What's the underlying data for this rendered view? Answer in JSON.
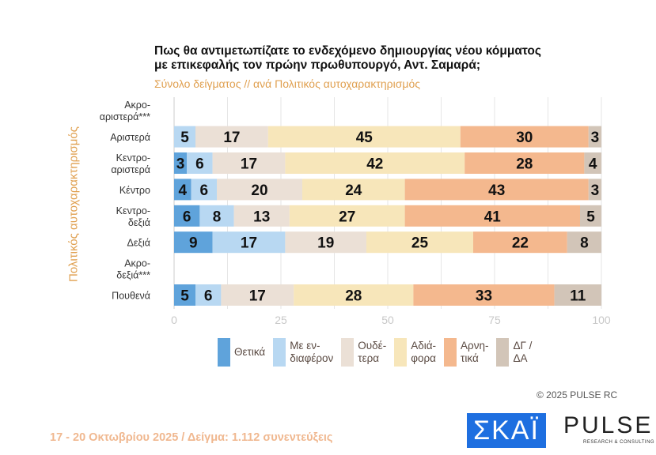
{
  "chart_data": {
    "type": "bar",
    "orientation": "horizontal",
    "stacked": true,
    "title": "Πως θα αντιμετωπίζατε το ενδεχόμενο δημιουργίας νέου κόμματος με επικεφαλής τον πρώην πρωθυπουργό, Αντ. Σαμαρά;",
    "title_lines": [
      "Πως θα αντιμετωπίζατε το ενδεχόμενο δημιουργίας νέου κόμματος",
      "με επικεφαλής τον πρώην πρωθυπουργό, Αντ. Σαμαρά;"
    ],
    "subtitle": "Σύνολο δείγματος // ανά Πολιτικός αυτοχαρακτηρισμός",
    "ylabel": "Πολιτικός αυτοχαρακτηρισμός",
    "xlim": [
      0,
      100
    ],
    "xticks": [
      "0",
      "25",
      "50",
      "75",
      "100"
    ],
    "grid": true,
    "legend_position": "bottom",
    "categories": [
      {
        "label": [
          "Ακρο-",
          "αριστερά***"
        ]
      },
      {
        "label": [
          "Αριστερά"
        ]
      },
      {
        "label": [
          "Κεντρο-",
          "αριστερά"
        ]
      },
      {
        "label": [
          "Κέντρο"
        ]
      },
      {
        "label": [
          "Κεντρο-",
          "δεξιά"
        ]
      },
      {
        "label": [
          "Δεξιά"
        ]
      },
      {
        "label": [
          "Ακρο-",
          "δεξιά***"
        ]
      },
      {
        "label": [
          "Πουθενά"
        ]
      }
    ],
    "series": [
      {
        "name": "Θετικά",
        "legend": [
          "Θετικά"
        ],
        "color": "#5fa3db",
        "values": [
          null,
          0,
          3,
          4,
          6,
          9,
          null,
          5
        ]
      },
      {
        "name": "Με ενδιαφέρον",
        "legend": [
          "Με εν-",
          "διαφέρον"
        ],
        "color": "#b8d8f2",
        "values": [
          null,
          5,
          6,
          6,
          8,
          17,
          null,
          6
        ]
      },
      {
        "name": "Ουδέτερα",
        "legend": [
          "Ουδέ-",
          "τερα"
        ],
        "color": "#ebe0d6",
        "values": [
          null,
          17,
          17,
          20,
          13,
          19,
          null,
          17
        ]
      },
      {
        "name": "Αδιάφορα",
        "legend": [
          "Αδιά-",
          "φορα"
        ],
        "color": "#f7e6ba",
        "values": [
          null,
          45,
          42,
          24,
          27,
          25,
          null,
          28
        ]
      },
      {
        "name": "Αρνητικά",
        "legend": [
          "Αρνη-",
          "τικά"
        ],
        "color": "#f4b88e",
        "values": [
          null,
          30,
          28,
          43,
          41,
          22,
          null,
          33
        ]
      },
      {
        "name": "ΔΓ / ΔΑ",
        "legend": [
          "ΔΓ /",
          "ΔΑ"
        ],
        "color": "#d2c5b8",
        "values": [
          null,
          3,
          4,
          3,
          5,
          8,
          null,
          11
        ]
      }
    ]
  },
  "footer": {
    "copyright": "© 2025 PULSE RC",
    "date_sample": "17 - 20 Οκτωβρίου 2025  /  Δείγμα:  1.112 συνεντεύξεις",
    "logo_skai": "ΣΚΑΪ",
    "logo_pulse": "PULSE",
    "logo_pulse_sub": "RESEARCH & CONSULTING"
  }
}
